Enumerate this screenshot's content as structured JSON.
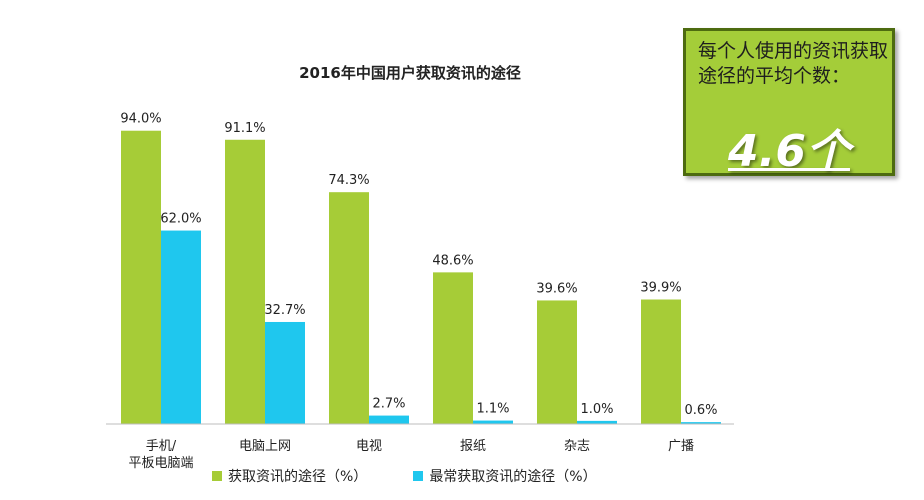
{
  "chart_data": {
    "type": "bar",
    "title": "2016年中国用户获取资讯的途径",
    "categories": [
      "手机/\n平板电脑端",
      "电脑上网",
      "电视",
      "报纸",
      "杂志",
      "广播"
    ],
    "series": [
      {
        "name": "获取资讯的途径（%）",
        "color": "#a6cc37",
        "values": [
          94.0,
          91.1,
          74.3,
          48.6,
          39.6,
          39.9
        ]
      },
      {
        "name": "最常获取资讯的途径（%）",
        "color": "#1fc7ee",
        "values": [
          62.0,
          32.7,
          2.7,
          1.1,
          1.0,
          0.6
        ]
      }
    ],
    "value_format": "0.0%",
    "ylim": [
      0,
      100
    ],
    "grid": false,
    "legend_position": "bottom"
  },
  "info_box": {
    "text": "每个人使用的资讯获取途径的平均个数：",
    "value": "4.6个",
    "color": "#a4cd39"
  }
}
